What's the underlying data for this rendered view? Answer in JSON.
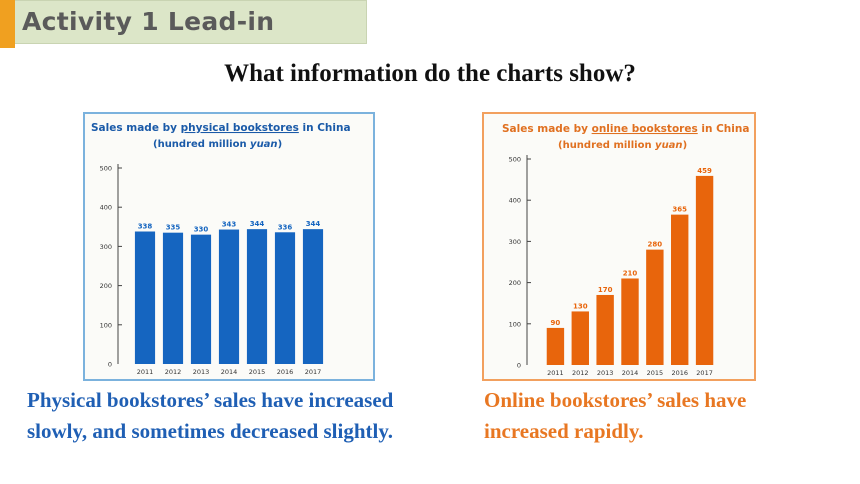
{
  "header": {
    "title": "Activity 1 Lead-in"
  },
  "question": "What information do the charts show?",
  "captions": {
    "physical": [
      "Physical bookstores’ sales have increased",
      "slowly, and sometimes decreased slightly."
    ],
    "online": [
      "Online bookstores’ sales have",
      "increased rapidly."
    ]
  },
  "colors": {
    "accent": "#f0a020",
    "header_bg": "#dce6c8",
    "physical": "#1565c0",
    "online": "#e8650c",
    "physical_text": "#1f5fb4",
    "online_text": "#e87722"
  },
  "chart_data": [
    {
      "type": "bar",
      "title_prefix": "Sales made by ",
      "title_underlined": "physical bookstores",
      "title_suffix": " in China",
      "subtitle_prefix": "(hundred million ",
      "subtitle_italic": "yuan",
      "subtitle_suffix": ")",
      "categories": [
        "2011",
        "2012",
        "2013",
        "2014",
        "2015",
        "2016",
        "2017"
      ],
      "values": [
        338,
        335,
        330,
        343,
        344,
        336,
        344
      ],
      "yticks": [
        "0",
        "100",
        "200",
        "300",
        "400",
        "500"
      ],
      "ylim": [
        0,
        500
      ],
      "grid": false,
      "color": "#1565c0",
      "title_color": "#1a5aa8"
    },
    {
      "type": "bar",
      "title_prefix": "Sales made by ",
      "title_underlined": "online bookstores",
      "title_suffix": " in China",
      "subtitle_prefix": "(hundred million ",
      "subtitle_italic": "yuan",
      "subtitle_suffix": ")",
      "categories": [
        "2011",
        "2012",
        "2013",
        "2014",
        "2015",
        "2016",
        "2017"
      ],
      "values": [
        90,
        130,
        170,
        210,
        280,
        365,
        459
      ],
      "yticks": [
        "0",
        "100",
        "200",
        "300",
        "400",
        "500"
      ],
      "ylim": [
        0,
        500
      ],
      "grid": false,
      "color": "#e8650c",
      "title_color": "#e07020"
    }
  ]
}
